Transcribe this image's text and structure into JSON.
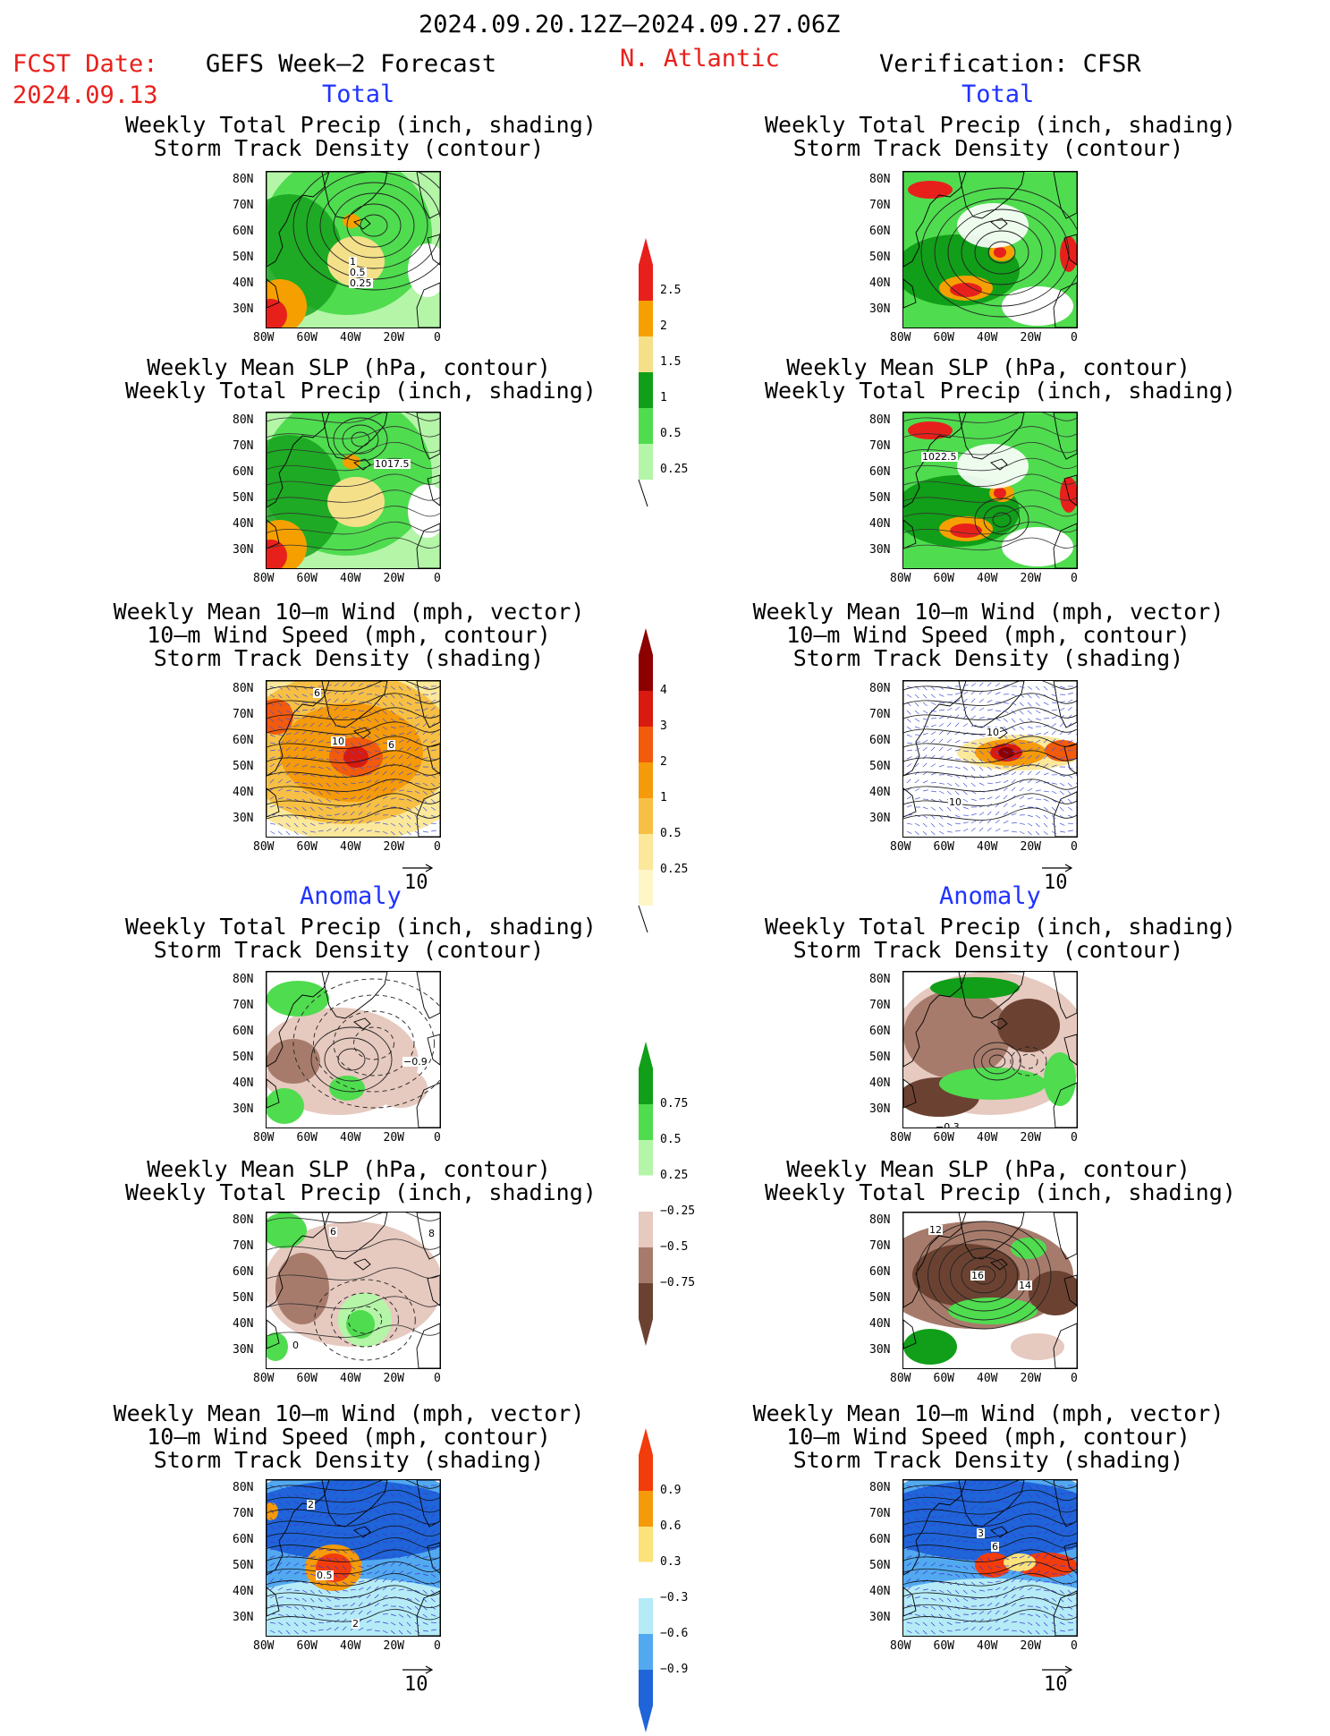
{
  "header": {
    "date_range": "2024.09.20.12Z–2024.09.27.06Z",
    "fcst_label": "FCST Date:",
    "fcst_date": "2024.09.13",
    "model": "GEFS Week–2 Forecast",
    "region": "N. Atlantic",
    "verification": "Verification: CFSR",
    "total_label": "Total",
    "anomaly_label": "Anomaly"
  },
  "panel_titles": {
    "precip_track": "Weekly Total Precip (inch, shading)\nStorm Track Density (contour)",
    "slp_precip": "Weekly Mean SLP (hPa, contour)\nWeekly Total Precip (inch, shading)",
    "wind": "Weekly Mean 10–m Wind (mph, vector)\n10–m Wind Speed (mph, contour)\nStorm Track Density (shading)"
  },
  "axes": {
    "lat_ticks": [
      "80N",
      "70N",
      "60N",
      "50N",
      "40N",
      "30N"
    ],
    "lon_ticks": [
      "80W",
      "60W",
      "40W",
      "20W",
      "0"
    ]
  },
  "vector_scale": "10",
  "colorbars": {
    "precip_total": {
      "labels": [
        "2.5",
        "2",
        "1.5",
        "1",
        "0.5",
        "0.25"
      ],
      "colors": [
        "#e8201c",
        "#f5a000",
        "#f5e08a",
        "#119e19",
        "#4fdc4f",
        "#b4f5a8"
      ]
    },
    "track_total": {
      "labels": [
        "4",
        "3",
        "2",
        "1",
        "0.5",
        "0.25"
      ],
      "colors": [
        "#8c0000",
        "#d91a0f",
        "#f25a0c",
        "#f59a0a",
        "#f7c044",
        "#fbe89a",
        "#fff6c8"
      ]
    },
    "precip_anom": {
      "labels": [
        "0.75",
        "0.5",
        "0.25",
        "−0.25",
        "−0.5",
        "−0.75"
      ],
      "colors": [
        "#119e19",
        "#4fdc4f",
        "#b4f5a8",
        "#ffffff",
        "#e6c9bf",
        "#a77b6b",
        "#6b4232"
      ]
    },
    "track_anom": {
      "labels": [
        "0.9",
        "0.6",
        "0.3",
        "−0.3",
        "−0.6",
        "−0.9"
      ],
      "colors": [
        "#f23c0c",
        "#f59a0a",
        "#fbe27a",
        "#ffffff",
        "#b4ebf7",
        "#52a9f0",
        "#1f64d9"
      ]
    }
  },
  "contour_labels": {
    "left_row1": [
      "1",
      "0.5",
      "0.25"
    ],
    "left_row2": [
      "1017.5"
    ],
    "left_row3": [
      "6",
      "10",
      "6"
    ],
    "left_row4": [
      "−0.9"
    ],
    "left_row5": [
      "6",
      "8",
      "0"
    ],
    "left_row6": [
      "2",
      "0.5",
      "2"
    ],
    "right_row2": [
      "1022.5"
    ],
    "right_row3": [
      "10",
      "10"
    ],
    "right_row4": [
      "−0.3"
    ],
    "right_row5": [
      "12",
      "16",
      "14"
    ],
    "right_row6": [
      "3",
      "6"
    ]
  }
}
